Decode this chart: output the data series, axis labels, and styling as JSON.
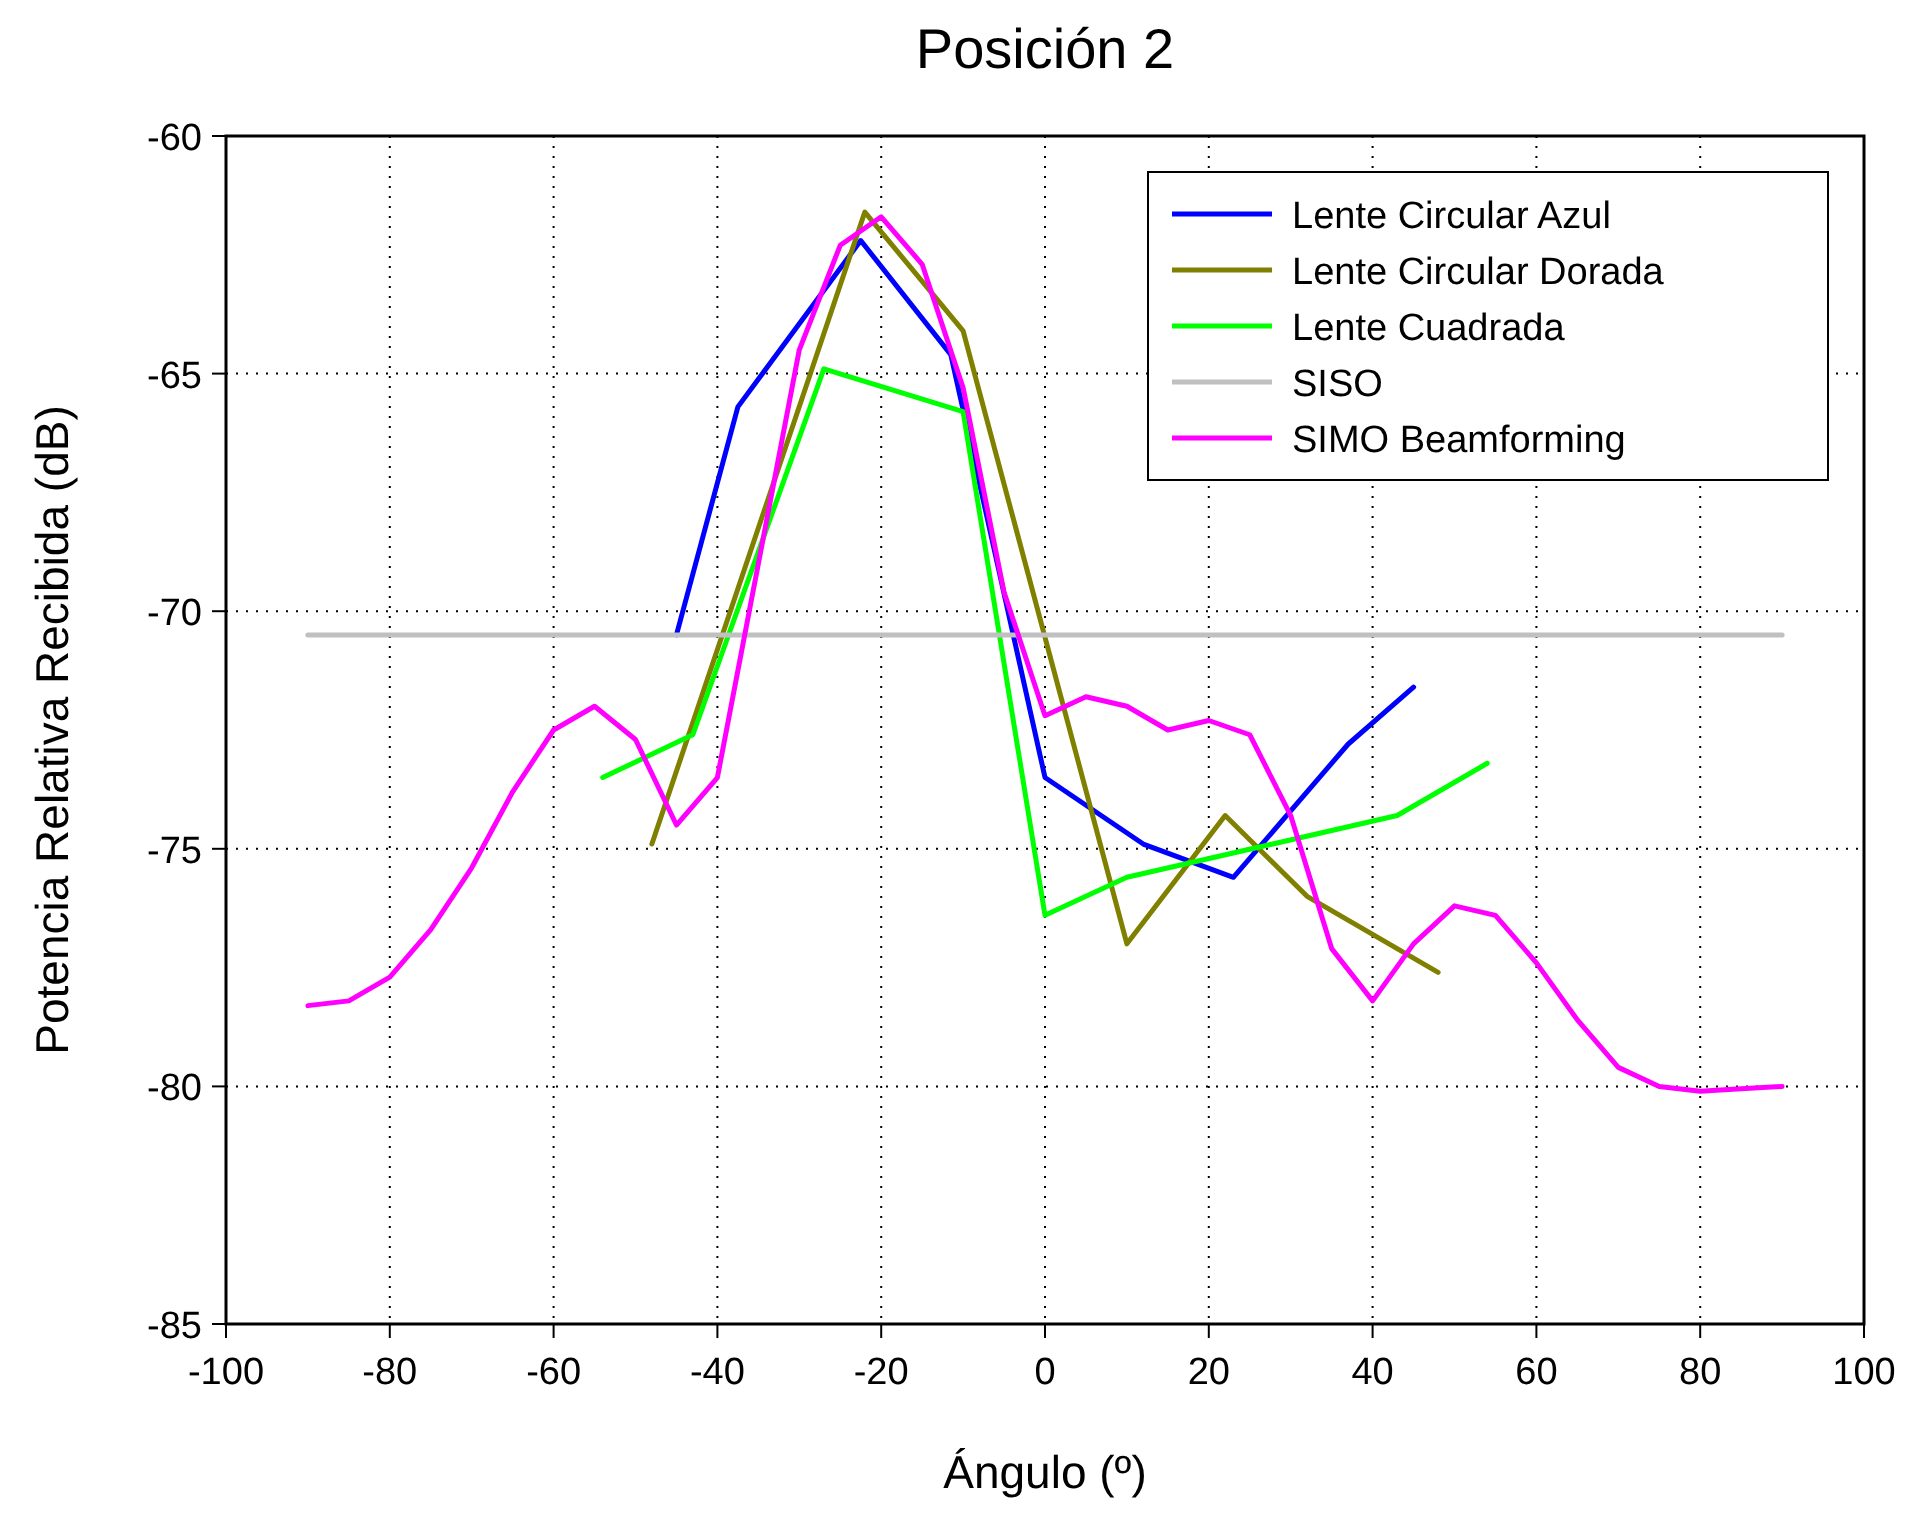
{
  "chart_data": {
    "type": "line",
    "title": "Posición 2",
    "xlabel": "Ángulo (º)",
    "ylabel": "Potencia Relativa Recibida (dB)",
    "xlim": [
      -100,
      100
    ],
    "xticks": [
      -100,
      -80,
      -60,
      -40,
      -20,
      0,
      20,
      40,
      60,
      80,
      100
    ],
    "ylim": [
      -85,
      -60
    ],
    "yticks": [
      -85,
      -80,
      -75,
      -70,
      -65,
      -60
    ],
    "grid": true,
    "legend": "top right",
    "line_style": "solid",
    "marker": "none",
    "series": [
      {
        "name": "Lente Circular Azul",
        "color": "#0000ff",
        "x": [
          -45,
          -37.5,
          -22.5,
          -11.5,
          0,
          12,
          23,
          37,
          45
        ],
        "values": [
          -70.5,
          -65.7,
          -62.2,
          -64.6,
          -73.5,
          -74.9,
          -75.6,
          -72.8,
          -71.6
        ]
      },
      {
        "name": "Lente Circular Dorada",
        "color": "#808000",
        "x": [
          -48,
          -22,
          -10,
          10,
          22,
          32,
          48
        ],
        "values": [
          -74.9,
          -61.6,
          -64.1,
          -77.0,
          -74.3,
          -76.0,
          -77.6
        ]
      },
      {
        "name": "Lente Cuadrada",
        "color": "#00ff00",
        "x": [
          -54,
          -43,
          -27,
          -10,
          0,
          10,
          43,
          54
        ],
        "values": [
          -73.5,
          -72.6,
          -64.9,
          -65.8,
          -76.4,
          -75.6,
          -74.3,
          -73.2
        ]
      },
      {
        "name": "SISO",
        "color": "#c0c0c0",
        "x": [
          -90,
          90
        ],
        "values": [
          -70.5,
          -70.5
        ]
      },
      {
        "name": "SIMO Beamforming",
        "color": "#ff00ff",
        "x": [
          -90,
          -85,
          -80,
          -75,
          -70,
          -65,
          -60,
          -55,
          -50,
          -45,
          -40,
          -35,
          -30,
          -25,
          -20,
          -15,
          -10,
          -5,
          0,
          5,
          10,
          15,
          20,
          25,
          30,
          35,
          40,
          45,
          50,
          55,
          60,
          65,
          70,
          75,
          80,
          85,
          90
        ],
        "values": [
          -78.3,
          -78.2,
          -77.7,
          -76.7,
          -75.4,
          -73.8,
          -72.5,
          -72.0,
          -72.7,
          -74.5,
          -73.5,
          -69,
          -64.5,
          -62.3,
          -61.7,
          -62.7,
          -65.3,
          -69.6,
          -72.2,
          -71.8,
          -72.0,
          -72.5,
          -72.3,
          -72.6,
          -74.3,
          -77.1,
          -78.2,
          -77.0,
          -76.2,
          -76.4,
          -77.4,
          -78.6,
          -79.6,
          -80.0,
          -80.1,
          -80.05,
          -80.0
        ]
      }
    ]
  }
}
